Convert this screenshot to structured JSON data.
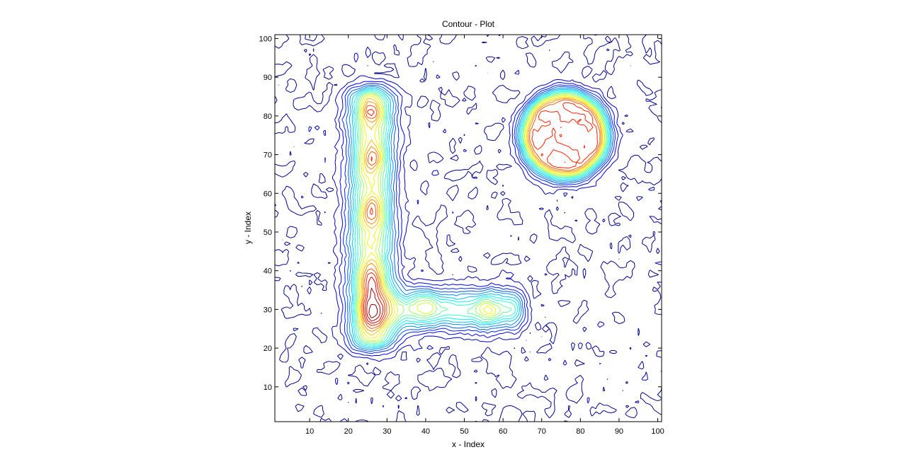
{
  "chart_data": {
    "type": "contour",
    "title": "Contour - Plot",
    "xlabel": "x - Index",
    "ylabel": "y - Index",
    "xlim": [
      1,
      101
    ],
    "ylim": [
      1,
      101
    ],
    "x_ticks": [
      10,
      20,
      30,
      40,
      50,
      60,
      70,
      80,
      90,
      100
    ],
    "y_ticks": [
      10,
      20,
      30,
      40,
      50,
      60,
      70,
      80,
      90,
      100
    ],
    "colormap": [
      "#00008f",
      "#0000ff",
      "#0080ff",
      "#00ffff",
      "#80ff80",
      "#ffff00",
      "#ff8000",
      "#ff0000",
      "#800000"
    ],
    "levels_count": 20,
    "z_range": [
      0,
      1
    ],
    "background_noise_amplitude": 0.07,
    "features": [
      {
        "shape": "vertical-bar",
        "x": 26,
        "y_from": 23,
        "y_to": 84,
        "width": 4,
        "peak": 0.95
      },
      {
        "shape": "horizontal-bar",
        "y": 30,
        "x_from": 26,
        "x_to": 62,
        "width": 3.5,
        "peak": 0.7
      },
      {
        "shape": "ring",
        "center": [
          76,
          75
        ],
        "radius": 8,
        "peak": 1.0
      },
      {
        "shape": "hot-spot",
        "center": [
          26,
          38
        ],
        "peak": 0.95
      },
      {
        "shape": "hot-spot",
        "center": [
          26,
          55
        ],
        "peak": 0.85
      },
      {
        "shape": "hot-spot",
        "center": [
          26,
          69
        ],
        "peak": 0.85
      },
      {
        "shape": "hot-spot",
        "center": [
          26,
          81
        ],
        "peak": 0.85
      },
      {
        "shape": "hot-spot",
        "center": [
          40,
          31
        ],
        "peak": 0.75
      },
      {
        "shape": "hot-spot",
        "center": [
          56,
          30
        ],
        "peak": 0.7
      }
    ]
  }
}
